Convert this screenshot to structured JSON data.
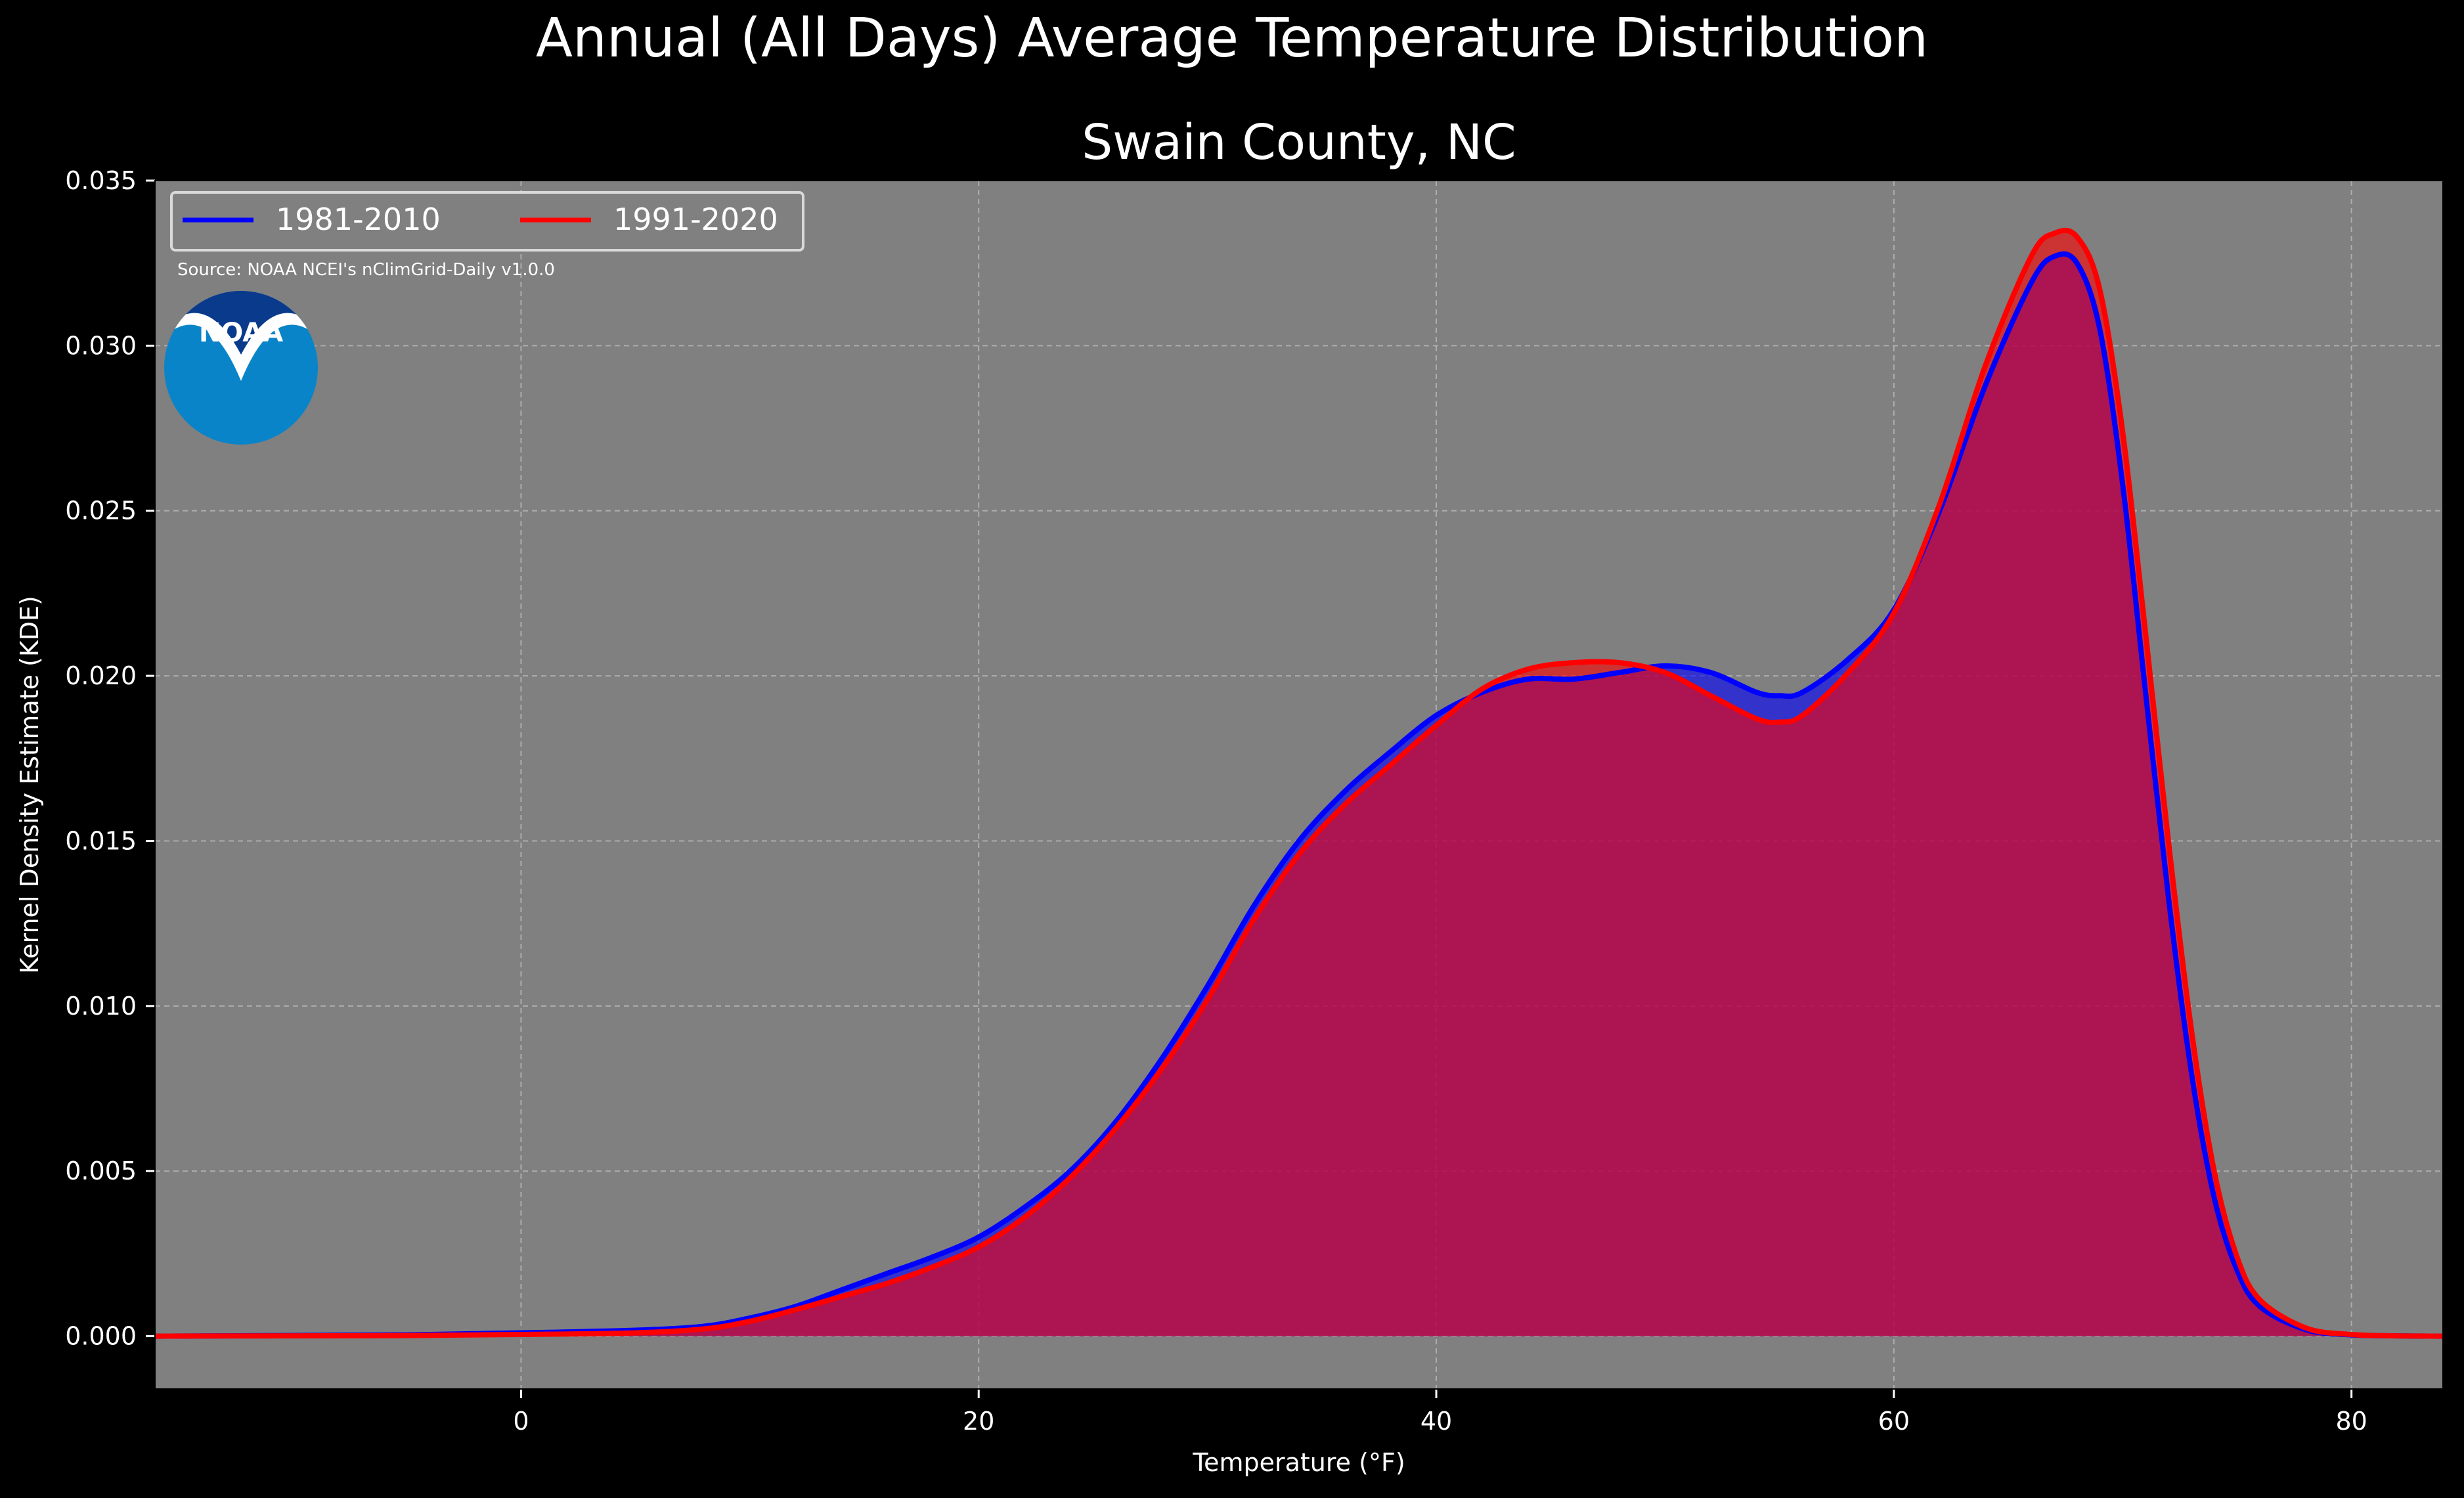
{
  "figure": {
    "suptitle": "Annual (All Days) Average Temperature Distribution",
    "title": "Swain County, NC",
    "source": "Source: NOAA NCEI's nClimGrid-Daily v1.0.0",
    "logo_text": "NOAA"
  },
  "colors": {
    "figure_bg": "#000000",
    "plot_bg": "#808080",
    "grid": "#bdbdbd",
    "text": "#ffffff",
    "series_1": "#0000ff",
    "series_2": "#ff0000",
    "overlap_fill": "#a0205c",
    "logo_dark": "#0a3a8c",
    "logo_light": "#0a84c8"
  },
  "chart_data": {
    "type": "area",
    "title": "Swain County, NC",
    "xlabel": "Temperature (°F)",
    "ylabel": "Kernel Density Estimate (KDE)",
    "xlim": [
      -16,
      84
    ],
    "ylim": [
      -0.0016,
      0.035
    ],
    "xticks": [
      0,
      20,
      40,
      60,
      80
    ],
    "yticks": [
      0.0,
      0.005,
      0.01,
      0.015,
      0.02,
      0.025,
      0.03,
      0.035
    ],
    "ytick_labels": [
      "0.000",
      "0.005",
      "0.010",
      "0.015",
      "0.020",
      "0.025",
      "0.030",
      "0.035"
    ],
    "grid": true,
    "legend_position": "top-left",
    "x": [
      -16,
      -10,
      -5,
      0,
      5,
      8,
      10,
      12,
      14,
      16,
      18,
      20,
      22,
      24,
      26,
      28,
      30,
      32,
      34,
      36,
      38,
      40,
      42,
      44,
      46,
      48,
      50,
      52,
      54,
      55,
      56,
      58,
      60,
      62,
      64,
      66,
      67,
      68,
      69,
      70,
      71,
      72,
      73,
      74,
      75,
      76,
      78,
      80,
      82,
      84
    ],
    "series": [
      {
        "name": "1981-2010",
        "values": [
          0.0,
          2e-05,
          4e-05,
          0.0001,
          0.00018,
          0.0003,
          0.00055,
          0.0009,
          0.0014,
          0.0019,
          0.0024,
          0.003,
          0.0039,
          0.005,
          0.0065,
          0.0084,
          0.0106,
          0.013,
          0.015,
          0.0165,
          0.0177,
          0.0188,
          0.0195,
          0.0199,
          0.0199,
          0.0201,
          0.0203,
          0.0201,
          0.0195,
          0.0194,
          0.0195,
          0.0205,
          0.022,
          0.025,
          0.0288,
          0.0319,
          0.0327,
          0.0325,
          0.0305,
          0.0258,
          0.0195,
          0.0133,
          0.008,
          0.0042,
          0.002,
          0.0009,
          0.0002,
          4e-05,
          1e-05,
          0.0
        ]
      },
      {
        "name": "1991-2020",
        "values": [
          0.0,
          1e-05,
          2e-05,
          5e-05,
          0.0001,
          0.00022,
          0.00045,
          0.0008,
          0.0012,
          0.0016,
          0.0021,
          0.0027,
          0.0036,
          0.0048,
          0.0063,
          0.0081,
          0.0102,
          0.0126,
          0.0146,
          0.0161,
          0.0173,
          0.0185,
          0.0196,
          0.0202,
          0.0204,
          0.0204,
          0.0201,
          0.0194,
          0.0187,
          0.0186,
          0.0188,
          0.0201,
          0.0219,
          0.0252,
          0.0294,
          0.0327,
          0.0334,
          0.0333,
          0.0317,
          0.0274,
          0.0213,
          0.015,
          0.0093,
          0.005,
          0.0024,
          0.0011,
          0.00025,
          5e-05,
          1e-05,
          0.0
        ]
      }
    ]
  }
}
